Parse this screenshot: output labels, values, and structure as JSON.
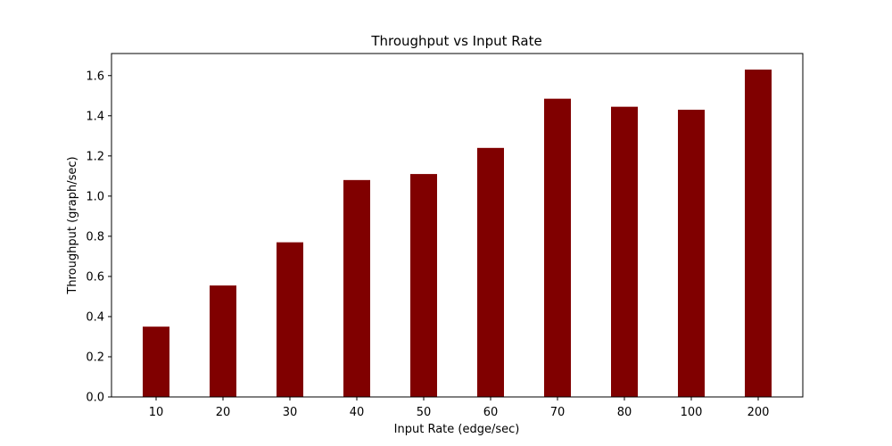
{
  "chart_data": {
    "type": "bar",
    "title": "Throughput vs Input Rate",
    "xlabel": "Input Rate (edge/sec)",
    "ylabel": "Throughput (graph/sec)",
    "categories": [
      "10",
      "20",
      "30",
      "40",
      "50",
      "60",
      "70",
      "80",
      "100",
      "200"
    ],
    "values": [
      0.35,
      0.555,
      0.77,
      1.08,
      1.11,
      1.24,
      1.485,
      1.445,
      1.43,
      1.63
    ],
    "ylim": [
      0,
      1.71
    ],
    "yticks": [
      0.0,
      0.2,
      0.4,
      0.6,
      0.8,
      1.0,
      1.2,
      1.4,
      1.6
    ],
    "ytick_labels": [
      "0.0",
      "0.2",
      "0.4",
      "0.6",
      "0.8",
      "1.0",
      "1.2",
      "1.4",
      "1.6"
    ],
    "bar_color": "#800000",
    "grid": false,
    "legend": "none"
  }
}
